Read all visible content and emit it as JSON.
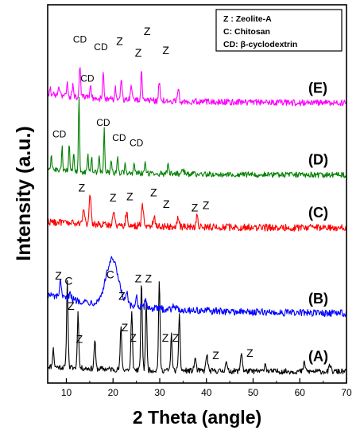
{
  "chart_data": {
    "type": "line",
    "xlabel": "2 Theta (angle)",
    "ylabel": "Intensity (a.u.)",
    "xlim": [
      6,
      70
    ],
    "xticks": [
      10,
      20,
      30,
      40,
      50,
      60,
      70
    ],
    "grid": false,
    "legend": {
      "placement": "top-right",
      "entries": [
        "Z : Zeolite-A",
        "C: Chitosan",
        "CD: β-cyclodextrin"
      ]
    },
    "series": [
      {
        "name": "(A)",
        "color": "#000000",
        "baseline": 0.9,
        "slope": 0.42,
        "noise": 0.22,
        "peaks": [
          {
            "x": 7.2,
            "h": 1.4,
            "w": 0.15
          },
          {
            "x": 10.2,
            "h": 6.8,
            "w": 0.16
          },
          {
            "x": 12.5,
            "h": 4.4,
            "w": 0.16
          },
          {
            "x": 16.1,
            "h": 2.3,
            "w": 0.16
          },
          {
            "x": 21.7,
            "h": 3.3,
            "w": 0.16
          },
          {
            "x": 24.0,
            "h": 4.5,
            "w": 0.16
          },
          {
            "x": 26.1,
            "h": 7.0,
            "w": 0.16
          },
          {
            "x": 27.1,
            "h": 5.3,
            "w": 0.16
          },
          {
            "x": 29.9,
            "h": 7.0,
            "w": 0.16
          },
          {
            "x": 32.5,
            "h": 2.8,
            "w": 0.16
          },
          {
            "x": 34.2,
            "h": 4.6,
            "w": 0.16
          },
          {
            "x": 37.6,
            "h": 1.0,
            "w": 0.2
          },
          {
            "x": 40.1,
            "h": 1.3,
            "w": 0.2
          },
          {
            "x": 44.2,
            "h": 0.7,
            "w": 0.2
          },
          {
            "x": 47.5,
            "h": 1.5,
            "w": 0.2
          },
          {
            "x": 52.6,
            "h": 0.6,
            "w": 0.2
          },
          {
            "x": 61.0,
            "h": 0.7,
            "w": 0.2
          },
          {
            "x": 66.5,
            "h": 0.5,
            "w": 0.2
          }
        ]
      },
      {
        "name": "(B)",
        "color": "#0000ff",
        "baseline": 5.5,
        "slope": 1.5,
        "noise": 0.28,
        "peaks": [
          {
            "x": 8.7,
            "h": 1.2,
            "w": 0.2
          },
          {
            "x": 10.8,
            "h": 0.7,
            "w": 0.2
          },
          {
            "x": 19.8,
            "h": 3.6,
            "w": 1.3
          },
          {
            "x": 23.0,
            "h": 0.9,
            "w": 0.2
          },
          {
            "x": 25.0,
            "h": 0.9,
            "w": 0.2
          },
          {
            "x": 27.0,
            "h": 0.7,
            "w": 0.2
          },
          {
            "x": 33.0,
            "h": 0.4,
            "w": 0.3
          }
        ]
      },
      {
        "name": "(C)",
        "color": "#ff0000",
        "baseline": 12.3,
        "slope": 0.5,
        "noise": 0.28,
        "peaks": [
          {
            "x": 13.7,
            "h": 1.4,
            "w": 0.2
          },
          {
            "x": 15.1,
            "h": 2.3,
            "w": 0.2
          },
          {
            "x": 20.1,
            "h": 1.2,
            "w": 0.2
          },
          {
            "x": 22.9,
            "h": 1.0,
            "w": 0.2
          },
          {
            "x": 26.3,
            "h": 1.6,
            "w": 0.2
          },
          {
            "x": 28.8,
            "h": 0.9,
            "w": 0.2
          },
          {
            "x": 34.0,
            "h": 0.8,
            "w": 0.2
          },
          {
            "x": 38.0,
            "h": 0.8,
            "w": 0.2
          }
        ]
      },
      {
        "name": "(D)",
        "color": "#008000",
        "baseline": 16.5,
        "slope": 0.4,
        "noise": 0.22,
        "peaks": [
          {
            "x": 6.8,
            "h": 1.3,
            "w": 0.12
          },
          {
            "x": 9.1,
            "h": 1.8,
            "w": 0.12
          },
          {
            "x": 10.6,
            "h": 2.2,
            "w": 0.12
          },
          {
            "x": 11.6,
            "h": 1.4,
            "w": 0.12
          },
          {
            "x": 12.7,
            "h": 5.8,
            "w": 0.12
          },
          {
            "x": 14.6,
            "h": 1.4,
            "w": 0.12
          },
          {
            "x": 15.4,
            "h": 1.2,
            "w": 0.12
          },
          {
            "x": 17.0,
            "h": 1.4,
            "w": 0.12
          },
          {
            "x": 18.1,
            "h": 3.4,
            "w": 0.12
          },
          {
            "x": 19.6,
            "h": 1.1,
            "w": 0.12
          },
          {
            "x": 21.0,
            "h": 1.3,
            "w": 0.12
          },
          {
            "x": 22.6,
            "h": 0.9,
            "w": 0.12
          },
          {
            "x": 24.5,
            "h": 0.7,
            "w": 0.12
          },
          {
            "x": 26.9,
            "h": 0.9,
            "w": 0.12
          },
          {
            "x": 31.8,
            "h": 0.9,
            "w": 0.15
          },
          {
            "x": 35.0,
            "h": 0.4,
            "w": 0.2
          }
        ]
      },
      {
        "name": "(E)",
        "color": "#ff00ff",
        "baseline": 22.2,
        "slope": 0.7,
        "noise": 0.25,
        "peaks": [
          {
            "x": 6.5,
            "h": 0.5,
            "w": 0.15
          },
          {
            "x": 8.4,
            "h": 0.8,
            "w": 0.15
          },
          {
            "x": 10.2,
            "h": 1.0,
            "w": 0.15
          },
          {
            "x": 11.4,
            "h": 0.9,
            "w": 0.15
          },
          {
            "x": 12.9,
            "h": 2.3,
            "w": 0.15
          },
          {
            "x": 15.2,
            "h": 1.0,
            "w": 0.15
          },
          {
            "x": 17.9,
            "h": 2.0,
            "w": 0.15
          },
          {
            "x": 20.5,
            "h": 0.9,
            "w": 0.15
          },
          {
            "x": 21.8,
            "h": 1.6,
            "w": 0.15
          },
          {
            "x": 23.9,
            "h": 1.0,
            "w": 0.15
          },
          {
            "x": 26.1,
            "h": 2.2,
            "w": 0.15
          },
          {
            "x": 29.9,
            "h": 1.6,
            "w": 0.15
          },
          {
            "x": 34.0,
            "h": 0.8,
            "w": 0.15
          }
        ]
      }
    ],
    "annotations": [
      {
        "text": "Z",
        "x": 24.3,
        "y": 3.3,
        "size": "large"
      },
      {
        "text": "Z",
        "x": 31.2,
        "y": 3.3,
        "size": "large"
      },
      {
        "text": "Z",
        "x": 12.8,
        "y": 3.2,
        "size": "large"
      },
      {
        "text": "Z",
        "x": 22.5,
        "y": 4.1,
        "size": "large"
      },
      {
        "text": "Z",
        "x": 33.4,
        "y": 3.3,
        "size": "large"
      },
      {
        "text": "Z",
        "x": 42.0,
        "y": 1.9,
        "size": "large"
      },
      {
        "text": "Z",
        "x": 49.3,
        "y": 2.1,
        "size": "large"
      },
      {
        "text": "Z",
        "x": 8.3,
        "y": 8.2,
        "size": "large"
      },
      {
        "text": "C",
        "x": 10.5,
        "y": 7.8,
        "size": "large"
      },
      {
        "text": "Z",
        "x": 11.0,
        "y": 5.8,
        "size": "large"
      },
      {
        "text": "C",
        "x": 19.4,
        "y": 8.3,
        "size": "large"
      },
      {
        "text": "Z",
        "x": 21.9,
        "y": 6.6,
        "size": "large"
      },
      {
        "text": "Z",
        "x": 25.4,
        "y": 8.0,
        "size": "large"
      },
      {
        "text": "Z",
        "x": 27.6,
        "y": 8.0,
        "size": "large"
      },
      {
        "text": "Z",
        "x": 13.3,
        "y": 15.2,
        "size": "large"
      },
      {
        "text": "Z",
        "x": 20.0,
        "y": 14.4,
        "size": "large"
      },
      {
        "text": "Z",
        "x": 23.6,
        "y": 14.5,
        "size": "large"
      },
      {
        "text": "Z",
        "x": 28.7,
        "y": 14.8,
        "size": "large"
      },
      {
        "text": "Z",
        "x": 31.4,
        "y": 13.9,
        "size": "large"
      },
      {
        "text": "Z",
        "x": 37.5,
        "y": 13.6,
        "size": "large"
      },
      {
        "text": "Z",
        "x": 39.9,
        "y": 13.8,
        "size": "large"
      },
      {
        "text": "CD",
        "x": 8.5,
        "y": 19.5,
        "size": "small"
      },
      {
        "text": "CD",
        "x": 17.9,
        "y": 20.4,
        "size": "small"
      },
      {
        "text": "CD",
        "x": 21.3,
        "y": 19.2,
        "size": "small"
      },
      {
        "text": "CD",
        "x": 25.0,
        "y": 18.8,
        "size": "small"
      },
      {
        "text": "CD",
        "x": 14.5,
        "y": 23.9,
        "size": "small"
      },
      {
        "text": "CD",
        "x": 12.9,
        "y": 27.0,
        "size": "small"
      },
      {
        "text": "CD",
        "x": 17.4,
        "y": 26.4,
        "size": "small"
      },
      {
        "text": "Z",
        "x": 21.4,
        "y": 26.8,
        "size": "large"
      },
      {
        "text": "Z",
        "x": 25.4,
        "y": 25.9,
        "size": "large"
      },
      {
        "text": "Z",
        "x": 27.3,
        "y": 27.6,
        "size": "large"
      },
      {
        "text": "Z",
        "x": 31.3,
        "y": 26.1,
        "size": "large"
      }
    ]
  }
}
